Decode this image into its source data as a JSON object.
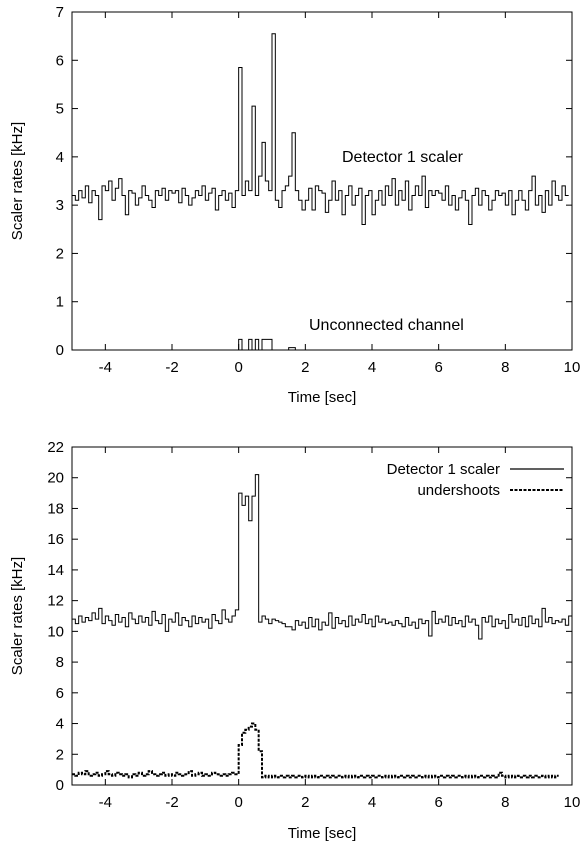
{
  "chart_data": [
    {
      "type": "line",
      "step": true,
      "xlabel": "Time [sec]",
      "ylabel": "Scaler rates [kHz]",
      "xlim": [
        -5,
        10
      ],
      "ylim": [
        0,
        7
      ],
      "xticks": [
        -4,
        -2,
        0,
        2,
        4,
        6,
        8,
        10
      ],
      "yticks": [
        0,
        1,
        2,
        3,
        4,
        5,
        6,
        7
      ],
      "bin_width": 0.1,
      "grid": false,
      "annotations": [
        "Detector 1 scaler",
        "Unconnected channel"
      ],
      "series": [
        {
          "style": "solid",
          "x_start": -5.0,
          "values": [
            3.2,
            3.1,
            3.3,
            3.15,
            3.4,
            3.05,
            3.3,
            3.2,
            2.7,
            3.4,
            3.3,
            3.5,
            3.1,
            3.35,
            3.55,
            3.2,
            2.8,
            3.3,
            3.25,
            3.0,
            3.15,
            3.4,
            3.2,
            3.1,
            2.95,
            3.3,
            3.2,
            3.35,
            3.1,
            3.3,
            3.25,
            3.3,
            3.05,
            3.35,
            3.2,
            3.0,
            3.15,
            3.3,
            3.2,
            3.4,
            3.1,
            3.25,
            3.35,
            2.9,
            3.2,
            3.3,
            3.1,
            3.25,
            2.95,
            3.3,
            5.85,
            3.2,
            3.5,
            3.3,
            5.05,
            3.2,
            3.6,
            4.3,
            3.5,
            3.3,
            6.55,
            3.1,
            2.95,
            3.3,
            3.4,
            3.6,
            4.5,
            3.3,
            3.1,
            2.9,
            3.1,
            3.35,
            2.9,
            3.4,
            3.3,
            3.25,
            2.85,
            3.1,
            3.5,
            3.1,
            3.3,
            2.8,
            3.2,
            3.4,
            3.0,
            3.2,
            3.35,
            2.6,
            3.2,
            3.3,
            2.8,
            3.1,
            3.3,
            3.0,
            3.4,
            3.2,
            3.55,
            3.0,
            3.3,
            3.1,
            3.5,
            2.9,
            3.2,
            3.4,
            3.2,
            3.6,
            2.95,
            3.3,
            3.2,
            3.3,
            3.25,
            3.1,
            3.4,
            3.0,
            3.2,
            2.9,
            3.15,
            3.3,
            3.1,
            2.6,
            3.2,
            3.35,
            3.0,
            3.3,
            3.2,
            2.9,
            3.1,
            3.3,
            3.2,
            3.25,
            3.0,
            3.3,
            2.8,
            3.1,
            3.3,
            3.1,
            2.9,
            3.3,
            3.6,
            3.0,
            3.2,
            2.85,
            3.3,
            3.0,
            3.5,
            3.2,
            3.1,
            3.4,
            3.2
          ]
        },
        {
          "style": "solid",
          "x_start": -5.0,
          "values": [
            0,
            0,
            0,
            0,
            0,
            0,
            0,
            0,
            0,
            0,
            0,
            0,
            0,
            0,
            0,
            0,
            0,
            0,
            0,
            0,
            0,
            0,
            0,
            0,
            0,
            0,
            0,
            0,
            0,
            0,
            0,
            0,
            0,
            0,
            0,
            0,
            0,
            0,
            0,
            0,
            0,
            0,
            0,
            0,
            0,
            0,
            0,
            0,
            0,
            0,
            0.22,
            0,
            0,
            0.22,
            0,
            0.22,
            0,
            0.22,
            0.22,
            0.22,
            0,
            0,
            0,
            0,
            0,
            0.05,
            0.05,
            0,
            0,
            0,
            0,
            0,
            0,
            0,
            0,
            0,
            0,
            0,
            0,
            0,
            0,
            0,
            0,
            0,
            0,
            0,
            0,
            0,
            0,
            0,
            0,
            0,
            0,
            0,
            0,
            0,
            0,
            0,
            0,
            0,
            0,
            0,
            0,
            0,
            0,
            0,
            0,
            0,
            0,
            0,
            0,
            0,
            0,
            0,
            0,
            0,
            0,
            0,
            0,
            0,
            0,
            0,
            0,
            0,
            0,
            0,
            0,
            0,
            0,
            0,
            0,
            0,
            0,
            0,
            0,
            0,
            0,
            0,
            0,
            0,
            0,
            0,
            0,
            0,
            0,
            0,
            0,
            0,
            0,
            0
          ]
        }
      ]
    },
    {
      "type": "line",
      "step": true,
      "xlabel": "Time [sec]",
      "ylabel": "Scaler rates [kHz]",
      "xlim": [
        -5,
        10
      ],
      "ylim": [
        0,
        22
      ],
      "xticks": [
        -4,
        -2,
        0,
        2,
        4,
        6,
        8,
        10
      ],
      "yticks": [
        0,
        2,
        4,
        6,
        8,
        10,
        12,
        14,
        16,
        18,
        20,
        22
      ],
      "bin_width": 0.1,
      "grid": false,
      "legend_position": "top-right",
      "series": [
        {
          "name": "Detector 1 scaler",
          "style": "solid",
          "x_start": -5.0,
          "values": [
            10.8,
            10.5,
            11.0,
            10.6,
            10.9,
            10.7,
            11.2,
            10.8,
            11.5,
            10.5,
            11.0,
            10.7,
            10.4,
            11.1,
            10.6,
            10.9,
            10.3,
            11.2,
            10.8,
            10.5,
            11.0,
            10.6,
            10.9,
            10.4,
            11.3,
            10.7,
            10.5,
            11.1,
            10.0,
            10.8,
            10.6,
            11.2,
            10.4,
            10.9,
            10.7,
            10.3,
            11.0,
            10.5,
            10.9,
            10.6,
            10.8,
            10.2,
            11.1,
            10.7,
            10.5,
            11.4,
            10.8,
            10.6,
            11.0,
            11.4,
            19.0,
            18.2,
            18.8,
            17.2,
            18.8,
            20.2,
            10.6,
            11.0,
            10.8,
            10.5,
            10.8,
            10.7,
            10.6,
            10.5,
            10.3,
            10.3,
            10.1,
            10.7,
            10.4,
            10.6,
            10.2,
            10.9,
            10.3,
            10.8,
            10.1,
            10.6,
            10.4,
            11.2,
            10.2,
            10.9,
            10.5,
            10.7,
            10.3,
            11.0,
            10.4,
            10.8,
            10.6,
            11.1,
            10.5,
            10.8,
            10.3,
            11.0,
            10.6,
            10.8,
            10.5,
            10.6,
            10.4,
            10.7,
            10.5,
            10.3,
            10.9,
            10.4,
            10.6,
            10.2,
            10.8,
            10.5,
            10.7,
            9.7,
            11.3,
            10.5,
            10.8,
            10.6,
            11.0,
            10.4,
            10.9,
            10.5,
            10.7,
            10.3,
            11.0,
            10.6,
            10.8,
            10.4,
            9.5,
            10.9,
            10.6,
            11.0,
            10.3,
            10.8,
            10.5,
            10.7,
            10.2,
            11.1,
            10.6,
            10.8,
            10.4,
            10.9,
            10.3,
            11.0,
            10.5,
            10.8,
            10.3,
            11.5,
            10.6,
            10.9,
            10.5,
            10.7,
            10.6,
            10.8,
            10.4,
            11.0
          ]
        },
        {
          "name": "undershoots",
          "style": "dashed",
          "x_start": -5.0,
          "values": [
            0.7,
            0.6,
            0.8,
            0.7,
            0.9,
            0.6,
            0.7,
            0.8,
            0.6,
            0.7,
            0.9,
            0.7,
            0.6,
            0.8,
            0.7,
            0.6,
            0.7,
            0.5,
            0.7,
            0.6,
            0.8,
            0.6,
            0.7,
            0.9,
            0.7,
            0.6,
            0.7,
            0.8,
            0.6,
            0.7,
            0.6,
            0.8,
            0.7,
            0.6,
            0.7,
            0.9,
            0.6,
            0.7,
            0.8,
            0.6,
            0.7,
            0.6,
            0.8,
            0.7,
            0.6,
            0.7,
            0.6,
            0.7,
            0.8,
            0.7,
            2.6,
            3.4,
            3.6,
            3.8,
            4.0,
            3.6,
            2.2,
            0.5,
            0.6,
            0.5,
            0.6,
            0.5,
            0.6,
            0.5,
            0.6,
            0.5,
            0.6,
            0.5,
            0.6,
            0.5,
            0.6,
            0.5,
            0.6,
            0.5,
            0.6,
            0.5,
            0.6,
            0.5,
            0.6,
            0.5,
            0.6,
            0.5,
            0.6,
            0.5,
            0.6,
            0.5,
            0.6,
            0.5,
            0.6,
            0.5,
            0.6,
            0.5,
            0.6,
            0.5,
            0.6,
            0.5,
            0.6,
            0.5,
            0.6,
            0.5,
            0.6,
            0.5,
            0.6,
            0.5,
            0.6,
            0.5,
            0.6,
            0.5,
            0.6,
            0.5,
            0.6,
            0.5,
            0.6,
            0.5,
            0.6,
            0.5,
            0.6,
            0.5,
            0.6,
            0.5,
            0.6,
            0.5,
            0.6,
            0.5,
            0.6,
            0.5,
            0.6,
            0.5,
            0.8,
            0.6,
            0.5,
            0.6,
            0.5,
            0.6,
            0.5,
            0.6,
            0.5,
            0.6,
            0.5,
            0.6,
            0.5,
            0.6,
            0.5,
            0.6,
            0.5,
            0.6
          ]
        }
      ]
    }
  ]
}
